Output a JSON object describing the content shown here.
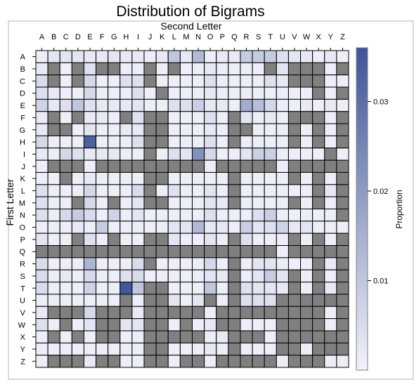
{
  "chart_data": {
    "type": "heatmap",
    "title": "Distribution of Bigrams",
    "xlabel": "Second Letter",
    "ylabel": "First Letter",
    "colorbar_label": "Proportion",
    "x_categories": [
      "A",
      "B",
      "C",
      "D",
      "E",
      "F",
      "G",
      "H",
      "I",
      "J",
      "K",
      "L",
      "M",
      "N",
      "O",
      "P",
      "Q",
      "R",
      "S",
      "T",
      "U",
      "V",
      "W",
      "X",
      "Y",
      "Z"
    ],
    "y_categories": [
      "A",
      "B",
      "C",
      "D",
      "E",
      "F",
      "G",
      "H",
      "I",
      "J",
      "K",
      "L",
      "M",
      "N",
      "O",
      "P",
      "Q",
      "R",
      "S",
      "T",
      "U",
      "V",
      "W",
      "X",
      "Y",
      "Z"
    ],
    "colorbar_ticks": [
      0.01,
      0.02,
      0.03
    ],
    "colorbar_range": [
      0,
      0.036
    ],
    "missing_color": "#808080",
    "color_low": "#f2f2fa",
    "color_high": "#3e5496",
    "grid": true,
    "legend": "right",
    "missing_marker": "M",
    "rows": [
      "1 3 3 3 2 2 3 2 2 1 2 10 2 13 1 2 2 9 9 9 4 3 2 1 2 1",
      "2 M 1 M 4 M M 1 1 M 1 M 1 1 2 1 1 1 1 M 3 M M M 1 M",
      "5 M 1 M 6 1 1 4 4 M 1 1 1 1 4 1 1 1 1 4 2 M M M 1 1",
      "4 2 1 1 6 1 1 1 4 1 M 1 1 1 2 1 1 1 1 1 1 1 1 M 1 M",
      "7 2 4 10 4 2 2 2 3 1 1 4 4 8 2 2 1 16 12 6 1 1 2 1 2 1",
      "2 M 1 M 2 2 1 M 4 M M 1 1 1 4 1 M 3 1 2 1 M M M 1 M",
      "2 M M 1 3 1 1 2 2 M M 1 1 1 2 1 M M 1 1 1 M 1 M 1 M",
      "6 1 1 1 33 1 1 1 4 M M 1 1 1 4 1 M 1 1 1 1 M 1 M 1 M",
      "2 1 6 4 2 2 2 1 1 M 1 4 3 22 6 1 1 3 8 8 1 1 1 1 M 1",
      "1 M M M 1 M M M M M M M M M 1 M M M M M 1 M M M M M",
      "1 1 M 1 2 1 1 1 1 M M 1 1 1 1 1 M 1 1 1 1 M 1 M 1 M",
      "4 1 1 1 6 1 1 1 5 M 1 4 1 1 3 1 M 1 1 1 1 1 1 M 2 M",
      "4 1 1 M 6 1 M 1 3 M M 1 1 1 3 2 M 1 1 1 1 M 1 M 1 M",
      "4 1 6 9 5 1 7 1 3 1 1 1 1 1 4 1 1 1 4 8 1 1 1 1 1 M",
      "1 1 1 2 1 9 1 1 1 1 1 3 3 13 2 2 1 8 3 4 7 2 3 1 1 1",
      "3 1 1 M 4 1 M 1 1 M M 3 1 1 3 1 M 4 1 1 1 M 1 M 1 M",
      "M M M M M M M M M M M M M M M M M M M M 1 M M M M M",
      "5 1 1 1 14 1 1 1 5 M 1 1 1 1 6 1 M 1 3 3 1 1 1 M 2 M",
      "5 1 2 1 6 1 1 4 5 1 1 1 1 1 3 2 M 1 3 9 3 M 1 M 1 M",
      "5 1 1 1 7 1 1 35 10 M M 1 1 1 10 1 M 4 3 3 2 M 1 M 2 M",
      "1 1 1 1 1 1 1 M 1 M M 3 1 3 M 1 M 4 4 4 M M M M M M",
      "2 M M M 6 M M M 2 M M M M M 1 M M M M M M M M M 1 M",
      "4 1 M 1 3 M M 3 3 M M 1 M 1 2 M M 1 1 1 M M M M 1 M",
      "1 M 1 M 1 M M 1 1 M M M M M 1 2 M M M 1 M M M M M M",
      "1 1 1 1 1 1 1 1 1 M M 1 1 1 2 1 M 1 1 1 M M 1 M M M",
      "1 M M M 2 M M 1 1 M M 1 M M 1 M M M M M 1 M M M 1 1"
    ]
  }
}
